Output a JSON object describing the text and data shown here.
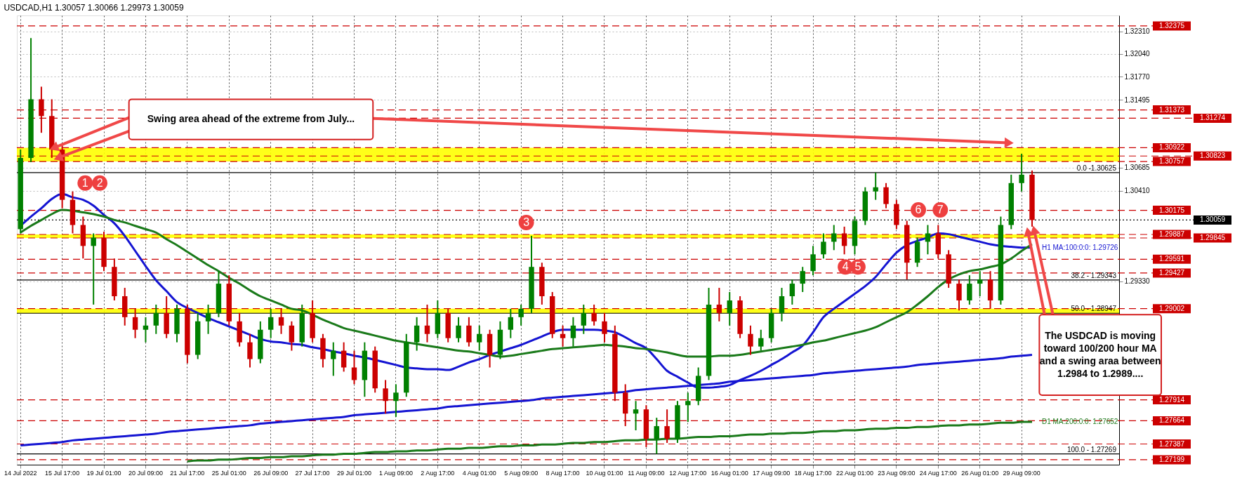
{
  "chart_data": {
    "type": "candlestick",
    "title": "USDCAD,H1 1.30057 1.30066 1.29973 1.30059",
    "categories": [
      "14 Jul 2022",
      null,
      null,
      null,
      "15 Jul 17:00",
      null,
      null,
      null,
      "19 Jul 01:00",
      null,
      null,
      null,
      "20 Jul 09:00",
      null,
      null,
      null,
      "21 Jul 17:00",
      null,
      null,
      null,
      "25 Jul 01:00",
      null,
      null,
      null,
      "26 Jul 09:00",
      null,
      null,
      null,
      "27 Jul 17:00",
      null,
      null,
      null,
      "29 Jul 01:00",
      null,
      null,
      null,
      "1 Aug 09:00",
      null,
      null,
      null,
      "2 Aug 17:00",
      null,
      null,
      null,
      "4 Aug 01:00",
      null,
      null,
      null,
      "5 Aug 09:00",
      null,
      null,
      null,
      "8 Aug 17:00",
      null,
      null,
      null,
      "10 Aug 01:00",
      null,
      null,
      null,
      "11 Aug 09:00",
      null,
      null,
      null,
      "12 Aug 17:00",
      null,
      null,
      null,
      "16 Aug 01:00",
      null,
      null,
      null,
      "17 Aug 09:00",
      null,
      null,
      null,
      "18 Aug 17:00",
      null,
      null,
      null,
      "22 Aug 01:00",
      null,
      null,
      null,
      "23 Aug 09:00",
      null,
      null,
      null,
      "24 Aug 17:00",
      null,
      null,
      null,
      "26 Aug 01:00",
      null,
      null,
      null,
      "29 Aug 09:00",
      null,
      null,
      null,
      null,
      null,
      null,
      null,
      null,
      null
    ],
    "ohlc": [
      [
        1.2995,
        1.309,
        1.299,
        1.308
      ],
      [
        1.308,
        1.3223,
        1.3075,
        1.315
      ],
      [
        1.315,
        1.3165,
        1.311,
        1.313
      ],
      [
        1.313,
        1.315,
        1.308,
        1.309
      ],
      [
        1.309,
        1.3095,
        1.302,
        1.303
      ],
      [
        1.303,
        1.304,
        1.299,
        1.3
      ],
      [
        1.3,
        1.301,
        1.296,
        1.2975
      ],
      [
        1.2975,
        1.299,
        1.2905,
        1.2985
      ],
      [
        1.2985,
        1.2992,
        1.2945,
        1.295
      ],
      [
        1.295,
        1.296,
        1.291,
        1.2915
      ],
      [
        1.2915,
        1.2925,
        1.288,
        1.289
      ],
      [
        1.289,
        1.29,
        1.2865,
        1.2875
      ],
      [
        1.2875,
        1.289,
        1.286,
        1.288
      ],
      [
        1.288,
        1.2905,
        1.287,
        1.2895
      ],
      [
        1.2895,
        1.2915,
        1.2865,
        1.287
      ],
      [
        1.287,
        1.2905,
        1.286,
        1.29
      ],
      [
        1.29,
        1.2905,
        1.2835,
        1.2845
      ],
      [
        1.2845,
        1.2895,
        1.284,
        1.2885
      ],
      [
        1.2885,
        1.2905,
        1.287,
        1.2895
      ],
      [
        1.2895,
        1.2945,
        1.289,
        1.293
      ],
      [
        1.293,
        1.294,
        1.288,
        1.2885
      ],
      [
        1.2885,
        1.2895,
        1.2855,
        1.286
      ],
      [
        1.286,
        1.287,
        1.283,
        1.284
      ],
      [
        1.284,
        1.2885,
        1.2835,
        1.2875
      ],
      [
        1.2875,
        1.29,
        1.2865,
        1.289
      ],
      [
        1.289,
        1.29,
        1.287,
        1.288
      ],
      [
        1.288,
        1.2885,
        1.285,
        1.286
      ],
      [
        1.286,
        1.2905,
        1.2855,
        1.2895
      ],
      [
        1.2895,
        1.291,
        1.286,
        1.2865
      ],
      [
        1.2865,
        1.287,
        1.283,
        1.284
      ],
      [
        1.284,
        1.286,
        1.282,
        1.285
      ],
      [
        1.285,
        1.286,
        1.2825,
        1.283
      ],
      [
        1.283,
        1.285,
        1.281,
        1.2815
      ],
      [
        1.2815,
        1.286,
        1.2795,
        1.285
      ],
      [
        1.285,
        1.2855,
        1.28,
        1.2805
      ],
      [
        1.2805,
        1.2815,
        1.2775,
        1.279
      ],
      [
        1.279,
        1.281,
        1.2771,
        1.28
      ],
      [
        1.28,
        1.287,
        1.2795,
        1.286
      ],
      [
        1.286,
        1.289,
        1.285,
        1.288
      ],
      [
        1.288,
        1.2905,
        1.286,
        1.287
      ],
      [
        1.287,
        1.291,
        1.2865,
        1.2895
      ],
      [
        1.2895,
        1.29,
        1.286,
        1.2865
      ],
      [
        1.2865,
        1.289,
        1.286,
        1.288
      ],
      [
        1.288,
        1.289,
        1.2855,
        1.286
      ],
      [
        1.286,
        1.288,
        1.285,
        1.287
      ],
      [
        1.287,
        1.2875,
        1.283,
        1.2845
      ],
      [
        1.2845,
        1.2885,
        1.284,
        1.2875
      ],
      [
        1.2875,
        1.29,
        1.2865,
        1.289
      ],
      [
        1.289,
        1.2905,
        1.288,
        1.29
      ],
      [
        1.29,
        1.2987,
        1.2895,
        1.295
      ],
      [
        1.295,
        1.2955,
        1.2905,
        1.2915
      ],
      [
        1.2915,
        1.292,
        1.2865,
        1.287
      ],
      [
        1.287,
        1.288,
        1.2855,
        1.2865
      ],
      [
        1.2865,
        1.289,
        1.2855,
        1.288
      ],
      [
        1.288,
        1.2905,
        1.287,
        1.2895
      ],
      [
        1.2895,
        1.2905,
        1.288,
        1.2885
      ],
      [
        1.2885,
        1.2895,
        1.286,
        1.287
      ],
      [
        1.287,
        1.288,
        1.279,
        1.28
      ],
      [
        1.28,
        1.281,
        1.276,
        1.2775
      ],
      [
        1.2775,
        1.279,
        1.2755,
        1.278
      ],
      [
        1.278,
        1.2785,
        1.2735,
        1.2745
      ],
      [
        1.2745,
        1.277,
        1.27269,
        1.276
      ],
      [
        1.276,
        1.278,
        1.274,
        1.2745
      ],
      [
        1.2745,
        1.279,
        1.274,
        1.2785
      ],
      [
        1.2785,
        1.28,
        1.2765,
        1.279
      ],
      [
        1.279,
        1.283,
        1.2785,
        1.282
      ],
      [
        1.282,
        1.2925,
        1.2815,
        1.2905
      ],
      [
        1.2905,
        1.2925,
        1.2885,
        1.2895
      ],
      [
        1.2895,
        1.292,
        1.288,
        1.291
      ],
      [
        1.291,
        1.2915,
        1.2865,
        1.287
      ],
      [
        1.287,
        1.288,
        1.2845,
        1.2855
      ],
      [
        1.2855,
        1.2875,
        1.285,
        1.2865
      ],
      [
        1.2865,
        1.29,
        1.286,
        1.2895
      ],
      [
        1.2895,
        1.2925,
        1.2885,
        1.2915
      ],
      [
        1.2915,
        1.2935,
        1.2905,
        1.293
      ],
      [
        1.293,
        1.295,
        1.292,
        1.2945
      ],
      [
        1.2945,
        1.2975,
        1.294,
        1.2965
      ],
      [
        1.2965,
        1.299,
        1.296,
        1.298
      ],
      [
        1.298,
        1.3,
        1.297,
        1.299
      ],
      [
        1.299,
        1.2998,
        1.2965,
        1.2975
      ],
      [
        1.2975,
        1.301,
        1.2965,
        1.3005
      ],
      [
        1.3005,
        1.3045,
        1.3,
        1.304
      ],
      [
        1.304,
        1.30625,
        1.303,
        1.3045
      ],
      [
        1.3045,
        1.305,
        1.302,
        1.3025
      ],
      [
        1.3025,
        1.303,
        1.2995,
        1.3
      ],
      [
        1.3,
        1.3005,
        1.2935,
        1.2955
      ],
      [
        1.2955,
        1.2985,
        1.295,
        1.298
      ],
      [
        1.298,
        1.3,
        1.2965,
        1.299
      ],
      [
        1.299,
        1.3,
        1.296,
        1.2965
      ],
      [
        1.2965,
        1.297,
        1.2925,
        1.293
      ],
      [
        1.293,
        1.2935,
        1.2898,
        1.291
      ],
      [
        1.291,
        1.294,
        1.2905,
        1.293
      ],
      [
        1.293,
        1.2945,
        1.2915,
        1.2935
      ],
      [
        1.2935,
        1.2945,
        1.29,
        1.291
      ],
      [
        1.291,
        1.301,
        1.2905,
        1.3
      ],
      [
        1.3,
        1.306,
        1.2995,
        1.305
      ],
      [
        1.305,
        1.3085,
        1.304,
        1.306
      ],
      [
        1.306,
        1.3065,
        1.2998,
        1.30059
      ],
      null,
      null,
      null,
      null,
      null,
      null,
      null,
      null
    ],
    "colors": [
      "#008000",
      "#008000",
      "#cc0000",
      "#cc0000",
      "#cc0000",
      "#cc0000",
      "#cc0000",
      "#008000",
      "#cc0000",
      "#cc0000",
      "#cc0000",
      "#cc0000",
      "#008000",
      "#008000",
      "#cc0000",
      "#008000",
      "#cc0000",
      "#008000",
      "#008000",
      "#008000",
      "#cc0000",
      "#cc0000",
      "#cc0000",
      "#008000",
      "#008000",
      "#cc0000",
      "#cc0000",
      "#008000",
      "#cc0000",
      "#cc0000",
      "#008000",
      "#cc0000",
      "#cc0000",
      "#008000",
      "#cc0000",
      "#cc0000",
      "#008000",
      "#008000",
      "#008000",
      "#cc0000",
      "#008000",
      "#cc0000",
      "#008000",
      "#cc0000",
      "#008000",
      "#cc0000",
      "#008000",
      "#008000",
      "#008000",
      "#008000",
      "#cc0000",
      "#cc0000",
      "#cc0000",
      "#008000",
      "#008000",
      "#cc0000",
      "#cc0000",
      "#cc0000",
      "#cc0000",
      "#008000",
      "#cc0000",
      "#008000",
      "#cc0000",
      "#008000",
      "#008000",
      "#008000",
      "#008000",
      "#cc0000",
      "#008000",
      "#cc0000",
      "#cc0000",
      "#008000",
      "#008000",
      "#008000",
      "#008000",
      "#008000",
      "#008000",
      "#008000",
      "#008000",
      "#cc0000",
      "#008000",
      "#008000",
      "#008000",
      "#cc0000",
      "#cc0000",
      "#cc0000",
      "#008000",
      "#008000",
      "#cc0000",
      "#cc0000",
      "#cc0000",
      "#008000",
      "#008000",
      "#cc0000",
      "#008000",
      "#008000",
      "#008000",
      "#cc0000",
      null,
      null,
      null,
      null,
      null,
      null,
      null,
      null
    ],
    "series": [
      {
        "type": "line",
        "color": "#1414d2",
        "values": [
          1.2999,
          1.301,
          1.302,
          1.3031,
          1.3037,
          1.3033,
          1.303,
          1.3023,
          1.3012,
          1.3002,
          1.2987,
          1.2969,
          1.2951,
          1.2934,
          1.2921,
          1.2908,
          1.2901,
          1.2895,
          1.2889,
          1.2884,
          1.2879,
          1.2874,
          1.2869,
          1.2864,
          1.2861,
          1.286,
          1.2858,
          1.2857,
          1.2854,
          1.2852,
          1.2849,
          1.2847,
          1.2844,
          1.2842,
          1.2839,
          1.2836,
          1.2833,
          1.283,
          1.2829,
          1.2828,
          1.2828,
          1.2827,
          1.2831,
          1.2836,
          1.284,
          1.2845,
          1.2849,
          1.2853,
          1.2857,
          1.2862,
          1.2867,
          1.2872,
          1.2875,
          1.2875,
          1.2875,
          1.2875,
          1.2874,
          1.2872,
          1.2866,
          1.2859,
          1.2853,
          1.284,
          1.2826,
          1.2819,
          1.2812,
          1.2806,
          1.2806,
          1.2807,
          1.2809,
          1.2815,
          1.282,
          1.2826,
          1.2833,
          1.284,
          1.2848,
          1.2856,
          1.2872,
          1.289,
          1.29,
          1.2909,
          1.2918,
          1.2927,
          1.2938,
          1.2953,
          1.2967,
          1.2976,
          1.2981,
          1.2985,
          1.299,
          1.2989,
          1.2986,
          1.2983,
          1.298,
          1.2977,
          1.2975,
          1.2974,
          1.2973,
          1.2973,
          null,
          null,
          null,
          null,
          null,
          null,
          null,
          null
        ]
      },
      {
        "type": "line",
        "color": "#1a7a1a",
        "values": [
          1.2991,
          1.2999,
          1.3006,
          1.3013,
          1.3018,
          1.3017,
          1.3015,
          1.3013,
          1.301,
          1.3006,
          1.3003,
          1.2999,
          1.2995,
          1.2991,
          1.2983,
          1.2976,
          1.2968,
          1.296,
          1.2952,
          1.2945,
          1.2937,
          1.293,
          1.2922,
          1.2915,
          1.291,
          1.2905,
          1.29,
          1.2898,
          1.2893,
          1.2887,
          1.2882,
          1.2877,
          1.2874,
          1.2871,
          1.2868,
          1.2865,
          1.2862,
          1.286,
          1.2858,
          1.2856,
          1.2854,
          1.2852,
          1.285,
          1.2849,
          1.2847,
          1.2845,
          1.2843,
          1.2844,
          1.2846,
          1.2848,
          1.285,
          1.2852,
          1.2853,
          1.2854,
          1.2855,
          1.2856,
          1.2857,
          1.2856,
          1.2855,
          1.2853,
          1.2852,
          1.285,
          1.2848,
          1.2845,
          1.2843,
          1.2843,
          1.2843,
          1.2844,
          1.2844,
          1.2845,
          1.2847,
          1.2849,
          1.2851,
          1.2853,
          1.2855,
          1.2857,
          1.286,
          1.2862,
          1.2865,
          1.2868,
          1.2871,
          1.2874,
          1.2878,
          1.2884,
          1.289,
          1.2896,
          1.2905,
          1.2915,
          1.2926,
          1.2935,
          1.2941,
          1.2945,
          1.2947,
          1.295,
          1.2953,
          1.296,
          1.2969,
          1.2977,
          null,
          null,
          null,
          null,
          null,
          null,
          null,
          null
        ]
      },
      {
        "type": "line",
        "color": "#1414d2",
        "values": [
          1.2737,
          1.2738,
          1.2739,
          1.274,
          1.2741,
          1.2743,
          1.2744,
          1.2745,
          1.2746,
          1.2747,
          1.2748,
          1.2749,
          1.275,
          1.2751,
          1.2753,
          1.2754,
          1.2755,
          1.2756,
          1.2757,
          1.2758,
          1.2759,
          1.276,
          1.2761,
          1.2763,
          1.2764,
          1.2765,
          1.2766,
          1.2767,
          1.2768,
          1.2769,
          1.277,
          1.2771,
          1.2773,
          1.2774,
          1.2775,
          1.2776,
          1.2777,
          1.2778,
          1.2779,
          1.278,
          1.2781,
          1.2783,
          1.2784,
          1.2785,
          1.2786,
          1.2787,
          1.2788,
          1.2789,
          1.279,
          1.2791,
          1.2793,
          1.2794,
          1.2795,
          1.2796,
          1.2797,
          1.2798,
          1.2799,
          1.28,
          1.2801,
          1.2803,
          1.2804,
          1.2805,
          1.2806,
          1.2807,
          1.2808,
          1.2809,
          1.281,
          1.2811,
          1.2813,
          1.2814,
          1.2815,
          1.2816,
          1.2817,
          1.2818,
          1.2819,
          1.282,
          1.2821,
          1.2823,
          1.2824,
          1.2825,
          1.2826,
          1.2827,
          1.2828,
          1.2829,
          1.283,
          1.2831,
          1.2833,
          1.2834,
          1.2835,
          1.2836,
          1.2837,
          1.2838,
          1.2839,
          1.284,
          1.2841,
          1.2843,
          1.2844,
          1.2845,
          null,
          null,
          null,
          null,
          null,
          null,
          null,
          null
        ]
      },
      {
        "type": "line",
        "color": "#1a7a1a",
        "values": [
          null,
          null,
          null,
          null,
          null,
          null,
          null,
          null,
          null,
          null,
          null,
          null,
          null,
          null,
          null,
          null,
          1.2718,
          1.2719,
          1.2719,
          1.272,
          1.272,
          1.2721,
          1.2722,
          1.2722,
          1.2723,
          1.2723,
          1.2724,
          1.2724,
          1.2725,
          1.2726,
          1.2726,
          1.2727,
          1.2727,
          1.2728,
          1.2729,
          1.2729,
          1.273,
          1.273,
          1.2731,
          1.2731,
          1.2732,
          1.2733,
          1.2733,
          1.2734,
          1.2734,
          1.2735,
          1.2736,
          1.2736,
          1.2737,
          1.2737,
          1.2738,
          1.2738,
          1.2739,
          1.274,
          1.274,
          1.2741,
          1.2741,
          1.2742,
          1.2743,
          1.2743,
          1.2744,
          1.2744,
          1.2745,
          1.2745,
          1.2746,
          1.2747,
          1.2747,
          1.2748,
          1.2748,
          1.2749,
          1.275,
          1.275,
          1.2751,
          1.2751,
          1.2752,
          1.2752,
          1.2753,
          1.2754,
          1.2754,
          1.2755,
          1.2755,
          1.2756,
          1.2757,
          1.2757,
          1.2758,
          1.2758,
          1.2759,
          1.2759,
          1.276,
          1.2761,
          1.2761,
          1.2762,
          1.2762,
          1.2763,
          1.2764,
          1.2764,
          1.2765,
          1.2765,
          null,
          null,
          null,
          null,
          null,
          null,
          null,
          null
        ]
      }
    ],
    "ylim": [
      1.2714,
      1.325
    ],
    "yticks": [
      {
        "value": 1.3231,
        "label": "1.32310"
      },
      {
        "value": 1.3204,
        "label": "1.32040"
      },
      {
        "value": 1.3177,
        "label": "1.31770"
      },
      {
        "value": 1.31495,
        "label": "1.31495"
      },
      {
        "value": 1.30685,
        "label": "1.30685"
      },
      {
        "value": 1.3041,
        "label": "1.30410"
      },
      {
        "value": 1.2933,
        "label": "1.29330"
      }
    ],
    "grid": true,
    "bands": [
      {
        "axis": "y",
        "from": 1.30757,
        "to": 1.30922,
        "color": "#ffff00"
      },
      {
        "axis": "y",
        "from": 1.29845,
        "to": 1.29887,
        "color": "#ffff00"
      },
      {
        "axis": "y",
        "from": 1.28947,
        "to": 1.29002,
        "color": "#ffff00"
      }
    ],
    "ref_lines": [
      {
        "axis": "y",
        "value": 1.32375,
        "label": "1.32375",
        "color": "#cc0000",
        "line_style": "dashed"
      },
      {
        "axis": "y",
        "value": 1.31373,
        "label": "1.31373",
        "color": "#cc0000",
        "line_style": "dashed"
      },
      {
        "axis": "y",
        "value": 1.31274,
        "label": "1.31274",
        "color": "#cc0000",
        "line_style": "dashed"
      },
      {
        "axis": "y",
        "value": 1.30922,
        "label": "1.30922",
        "color": "#cc0000",
        "line_style": "dashed"
      },
      {
        "axis": "y",
        "value": 1.30823,
        "label": "1.30823",
        "color": "#cc0000",
        "line_style": "dashed"
      },
      {
        "axis": "y",
        "value": 1.30757,
        "label": "1.30757",
        "color": "#cc0000",
        "line_style": "dashed"
      },
      {
        "axis": "y",
        "value": 1.30175,
        "label": "1.30175",
        "color": "#cc0000",
        "line_style": "dashed"
      },
      {
        "axis": "y",
        "value": 1.30059,
        "label": "1.30059",
        "color": "#000000",
        "line_style": "dotted"
      },
      {
        "axis": "y",
        "value": 1.29887,
        "label": "1.29887",
        "color": "#cc0000",
        "line_style": "dashed"
      },
      {
        "axis": "y",
        "value": 1.29845,
        "label": "1.29845",
        "color": "#cc0000",
        "line_style": "dashed"
      },
      {
        "axis": "y",
        "value": 1.29591,
        "label": "1.29591",
        "color": "#cc0000",
        "line_style": "dashed"
      },
      {
        "axis": "y",
        "value": 1.29427,
        "label": "1.29427",
        "color": "#cc0000",
        "line_style": "dashed"
      },
      {
        "axis": "y",
        "value": 1.29002,
        "label": "1.29002",
        "color": "#cc0000",
        "line_style": "dashed"
      },
      {
        "axis": "y",
        "value": 1.27914,
        "label": "1.27914",
        "color": "#cc0000",
        "line_style": "dashed"
      },
      {
        "axis": "y",
        "value": 1.27664,
        "label": "1.27664",
        "color": "#cc0000",
        "line_style": "dashed"
      },
      {
        "axis": "y",
        "value": 1.27387,
        "label": "1.27387",
        "color": "#cc0000",
        "line_style": "dashed"
      },
      {
        "axis": "y",
        "value": 1.27199,
        "label": "1.27199",
        "color": "#cc0000",
        "line_style": "dashed"
      },
      {
        "axis": "y",
        "value": 1.30625,
        "color": "#000000",
        "line_style": "solid"
      },
      {
        "axis": "y",
        "value": 1.29343,
        "color": "#000000",
        "line_style": "solid"
      },
      {
        "axis": "y",
        "value": 1.28947,
        "color": "#000000",
        "line_style": "solid"
      },
      {
        "axis": "y",
        "value": 1.27269,
        "color": "#000000",
        "line_style": "solid"
      }
    ],
    "annotations": [
      "Swing area ahead of the extreme from July...",
      "The USDCAD is moving toward 100/200 hour MA and a swing araa between 1.2984 to 1.2989....",
      "H1 MA:100:0:0: 1.29726",
      {
        "text": "D1 MA:200:0:0: 1.27652",
        "y": 1.27652
      },
      {
        "text": "0.0 -1.30625",
        "y": 1.30625
      },
      {
        "text": "38.2 - 1.29343",
        "y": 1.29343
      },
      {
        "text": "50.0 - 1.28947",
        "y": 1.28947
      },
      {
        "text": "100.0 - 1.27269",
        "y": 1.27269
      },
      {
        "text": "1",
        "y": 1.305
      },
      {
        "text": "2",
        "y": 1.305
      },
      {
        "text": "3",
        "y": 1.3003
      },
      {
        "text": "4",
        "y": 1.295
      },
      {
        "text": "5",
        "y": 1.295
      },
      {
        "text": "6",
        "y": 1.3018
      },
      {
        "text": "7",
        "y": 1.3018
      }
    ]
  }
}
